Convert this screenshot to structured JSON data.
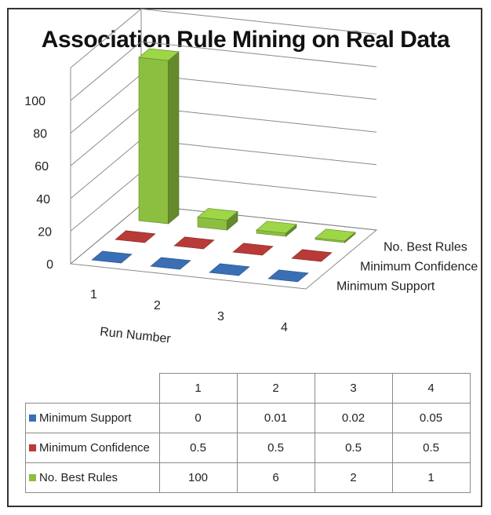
{
  "chart_data": {
    "type": "bar",
    "title": "Association Rule Mining on Real Data",
    "xlabel": "Run Number",
    "categories": [
      "1",
      "2",
      "3",
      "4"
    ],
    "yticks": [
      0,
      20,
      40,
      60,
      80,
      100
    ],
    "ylim": [
      0,
      100
    ],
    "grid": true,
    "series": [
      {
        "name": "Minimum Support",
        "values": [
          0,
          0.01,
          0.02,
          0.05
        ],
        "color": "#3a6fb5"
      },
      {
        "name": "Minimum Confidence",
        "values": [
          0.5,
          0.5,
          0.5,
          0.5
        ],
        "color": "#b83b38"
      },
      {
        "name": "No. Best Rules",
        "values": [
          100,
          6,
          2,
          1
        ],
        "color": "#8cbf3f"
      }
    ],
    "table": {
      "header": [
        "1",
        "2",
        "3",
        "4"
      ],
      "rows": [
        {
          "label": "Minimum Support",
          "cells": [
            "0",
            "0.01",
            "0.02",
            "0.05"
          ]
        },
        {
          "label": "Minimum Confidence",
          "cells": [
            "0.5",
            "0.5",
            "0.5",
            "0.5"
          ]
        },
        {
          "label": "No. Best Rules",
          "cells": [
            "100",
            "6",
            "2",
            "1"
          ]
        }
      ]
    }
  }
}
